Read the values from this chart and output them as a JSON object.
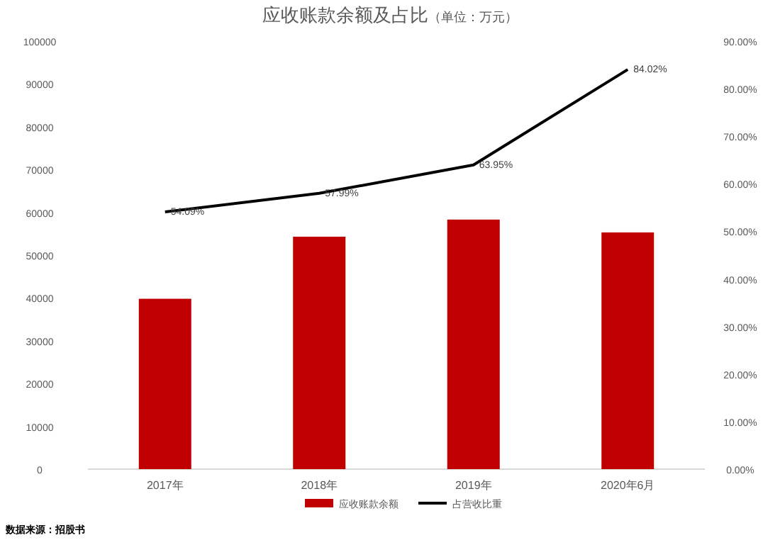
{
  "chart_data": {
    "type": "bar",
    "title": "应收账款余额及占比",
    "subtitle": "（单位：万元）",
    "categories": [
      "2017年",
      "2018年",
      "2019年",
      "2020年6月"
    ],
    "series": [
      {
        "name": "应收账款余额",
        "color": "#c00000",
        "values": [
          39800,
          54300,
          58300,
          55300
        ]
      },
      {
        "name": "占营收比重",
        "type": "line",
        "axis": "y2",
        "color": "#000000",
        "values": [
          54.09,
          57.99,
          63.95,
          84.02
        ],
        "value_labels": [
          "54.09%",
          "57.99%",
          "63.95%",
          "84.02%"
        ]
      }
    ],
    "ylim": [
      0,
      100000
    ],
    "yticks": [
      0,
      10000,
      20000,
      30000,
      40000,
      50000,
      60000,
      70000,
      80000,
      90000,
      100000
    ],
    "y2lim": [
      0,
      90
    ],
    "y2ticks": [
      {
        "value": 0,
        "label": "0.00%"
      },
      {
        "value": 10,
        "label": "10.00%"
      },
      {
        "value": 20,
        "label": "20.00%"
      },
      {
        "value": 30,
        "label": "30.00%"
      },
      {
        "value": 40,
        "label": "40.00%"
      },
      {
        "value": 50,
        "label": "50.00%"
      },
      {
        "value": 60,
        "label": "60.00%"
      },
      {
        "value": 70,
        "label": "70.00%"
      },
      {
        "value": 80,
        "label": "80.00%"
      },
      {
        "value": 90,
        "label": "90.00%"
      }
    ],
    "legend": "bottom",
    "grid": false,
    "marker": "none",
    "line_style": "solid",
    "annotations": [
      "数据来源：招股书"
    ]
  }
}
